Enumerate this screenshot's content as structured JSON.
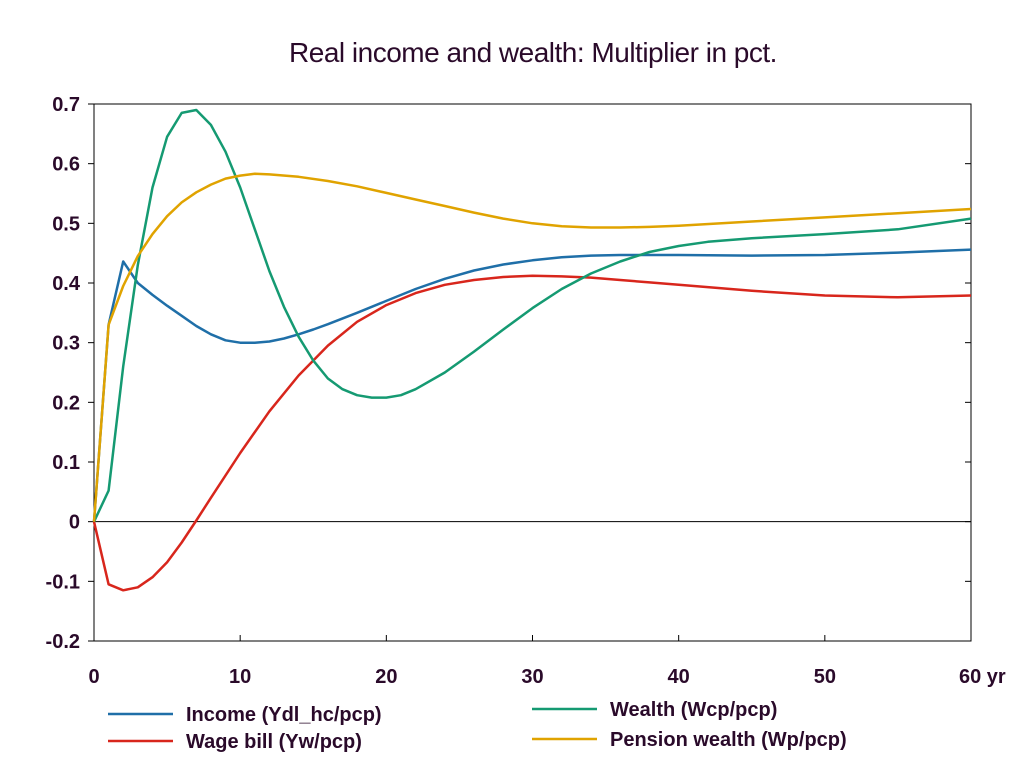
{
  "chart_data": {
    "type": "line",
    "title": "Real income and wealth: Multiplier in pct.",
    "xlim": [
      0,
      60
    ],
    "ylim": [
      -0.2,
      0.7
    ],
    "x_ticks": [
      {
        "value": 0,
        "label": "0"
      },
      {
        "value": 10,
        "label": "10"
      },
      {
        "value": 20,
        "label": "20"
      },
      {
        "value": 30,
        "label": "30"
      },
      {
        "value": 40,
        "label": "40"
      },
      {
        "value": 50,
        "label": "50"
      },
      {
        "value": 60,
        "label": "60 yr"
      }
    ],
    "y_ticks": [
      {
        "value": 0.7,
        "label": "0.7"
      },
      {
        "value": 0.6,
        "label": "0.6"
      },
      {
        "value": 0.5,
        "label": "0.5"
      },
      {
        "value": 0.4,
        "label": "0.4"
      },
      {
        "value": 0.3,
        "label": "0.3"
      },
      {
        "value": 0.2,
        "label": "0.2"
      },
      {
        "value": 0.1,
        "label": "0.1"
      },
      {
        "value": 0,
        "label": "0"
      },
      {
        "value": -0.1,
        "label": "-0.1"
      },
      {
        "value": -0.2,
        "label": "-0.2"
      }
    ],
    "grid": false,
    "zero_line": true,
    "legend_position": "bottom",
    "series": [
      {
        "name": "Income (Ydl_hc/pcp)",
        "color": "#1f6fa8",
        "x": [
          0,
          1,
          2,
          3,
          4,
          5,
          6,
          7,
          8,
          9,
          10,
          11,
          12,
          13,
          14,
          15,
          16,
          18,
          20,
          22,
          24,
          26,
          28,
          30,
          32,
          34,
          36,
          38,
          40,
          45,
          50,
          55,
          60
        ],
        "y": [
          0,
          0.33,
          0.436,
          0.4,
          0.38,
          0.362,
          0.345,
          0.328,
          0.314,
          0.304,
          0.3,
          0.3,
          0.302,
          0.307,
          0.314,
          0.322,
          0.331,
          0.35,
          0.37,
          0.39,
          0.407,
          0.421,
          0.431,
          0.438,
          0.443,
          0.446,
          0.447,
          0.447,
          0.447,
          0.446,
          0.447,
          0.451,
          0.456
        ]
      },
      {
        "name": "Wage bill (Yw/pcp)",
        "color": "#d8261c",
        "x": [
          0,
          1,
          2,
          3,
          4,
          5,
          6,
          7,
          8,
          10,
          12,
          14,
          16,
          18,
          20,
          22,
          24,
          26,
          28,
          30,
          32,
          34,
          36,
          38,
          40,
          45,
          50,
          55,
          60
        ],
        "y": [
          0,
          -0.105,
          -0.115,
          -0.11,
          -0.093,
          -0.068,
          -0.035,
          0.002,
          0.04,
          0.115,
          0.185,
          0.245,
          0.295,
          0.335,
          0.363,
          0.383,
          0.397,
          0.405,
          0.41,
          0.412,
          0.411,
          0.409,
          0.405,
          0.401,
          0.397,
          0.387,
          0.379,
          0.376,
          0.379
        ]
      },
      {
        "name": "Wealth (Wcp/pcp)",
        "color": "#159a72",
        "x": [
          0,
          1,
          2,
          3,
          4,
          5,
          6,
          7,
          8,
          9,
          10,
          11,
          12,
          13,
          14,
          15,
          16,
          17,
          18,
          19,
          20,
          21,
          22,
          24,
          26,
          28,
          30,
          32,
          34,
          36,
          38,
          40,
          42,
          45,
          50,
          55,
          60
        ],
        "y": [
          0,
          0.052,
          0.26,
          0.43,
          0.56,
          0.645,
          0.685,
          0.69,
          0.665,
          0.62,
          0.56,
          0.49,
          0.42,
          0.36,
          0.31,
          0.27,
          0.24,
          0.222,
          0.212,
          0.208,
          0.208,
          0.212,
          0.222,
          0.25,
          0.285,
          0.322,
          0.358,
          0.39,
          0.416,
          0.436,
          0.452,
          0.462,
          0.469,
          0.475,
          0.482,
          0.49,
          0.508
        ]
      },
      {
        "name": "Pension wealth (Wp/pcp)",
        "color": "#e0a300",
        "x": [
          0,
          1,
          2,
          3,
          4,
          5,
          6,
          7,
          8,
          9,
          10,
          11,
          12,
          14,
          16,
          18,
          20,
          22,
          24,
          26,
          28,
          30,
          32,
          34,
          36,
          38,
          40,
          45,
          50,
          55,
          60
        ],
        "y": [
          0,
          0.33,
          0.395,
          0.445,
          0.482,
          0.512,
          0.535,
          0.552,
          0.565,
          0.575,
          0.58,
          0.583,
          0.582,
          0.578,
          0.571,
          0.562,
          0.551,
          0.54,
          0.529,
          0.518,
          0.508,
          0.5,
          0.495,
          0.493,
          0.493,
          0.494,
          0.496,
          0.503,
          0.51,
          0.517,
          0.524
        ]
      }
    ]
  }
}
